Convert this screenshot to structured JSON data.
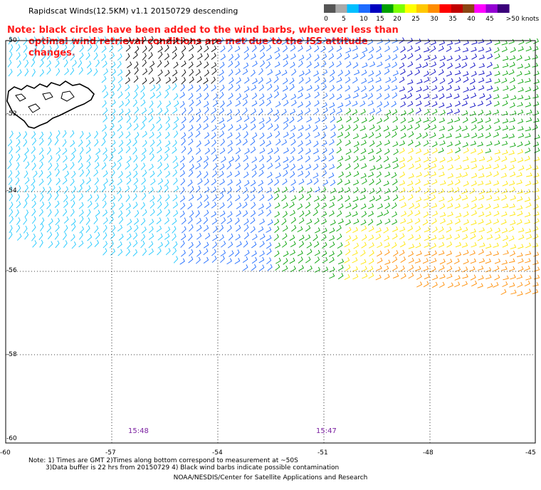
{
  "header": {
    "title": "Rapidscat Winds(12.5KM) v1.1 20150729 descending",
    "note_line1": "Note: black circles have been added to the wind barbs, wherever less than",
    "note_line2": "optimal wind retrieval conditions are met due to the ISS attitude changes."
  },
  "legend": {
    "ticks": [
      "0",
      "5",
      "10",
      "15",
      "20",
      "25",
      "30",
      "35",
      "40",
      "45",
      ">50 knots"
    ],
    "colors": [
      "#555555",
      "#a9a9a9",
      "#00bfff",
      "#1e6bff",
      "#0000c0",
      "#00a000",
      "#7cff00",
      "#ffff00",
      "#ffc800",
      "#ff8c00",
      "#ff0000",
      "#c00000",
      "#8b4513",
      "#ff00ff",
      "#9400d3",
      "#3a007a"
    ]
  },
  "map": {
    "lat_labels": [
      "-50",
      "-52",
      "-54",
      "-56",
      "-58",
      "-60"
    ],
    "lon_labels": [
      "-60",
      "-57",
      "-54",
      "-51",
      "-48",
      "-45"
    ],
    "time_labels": [
      "15:48",
      "15:47"
    ]
  },
  "footer": {
    "note_line1": "Note: 1) Times are GMT 2)Times along bottom correspond to measurement at ~50S",
    "note_line2": "3)Data buffer is 22 hrs from 20150729 4) Black wind barbs indicate possible contamination",
    "credit": "NOAA/NESDIS/Center for Satellite Applications and Research"
  },
  "colors": {
    "accent_note": "#ff1a1a",
    "time_label": "#7a1fa0",
    "barb_light": "#1ec8ff",
    "barb_mid": "#1e6bff",
    "barb_dark": "#0000c0",
    "barb_green": "#00a000",
    "barb_yellow": "#ffe600",
    "barb_orange": "#ff8c00"
  }
}
